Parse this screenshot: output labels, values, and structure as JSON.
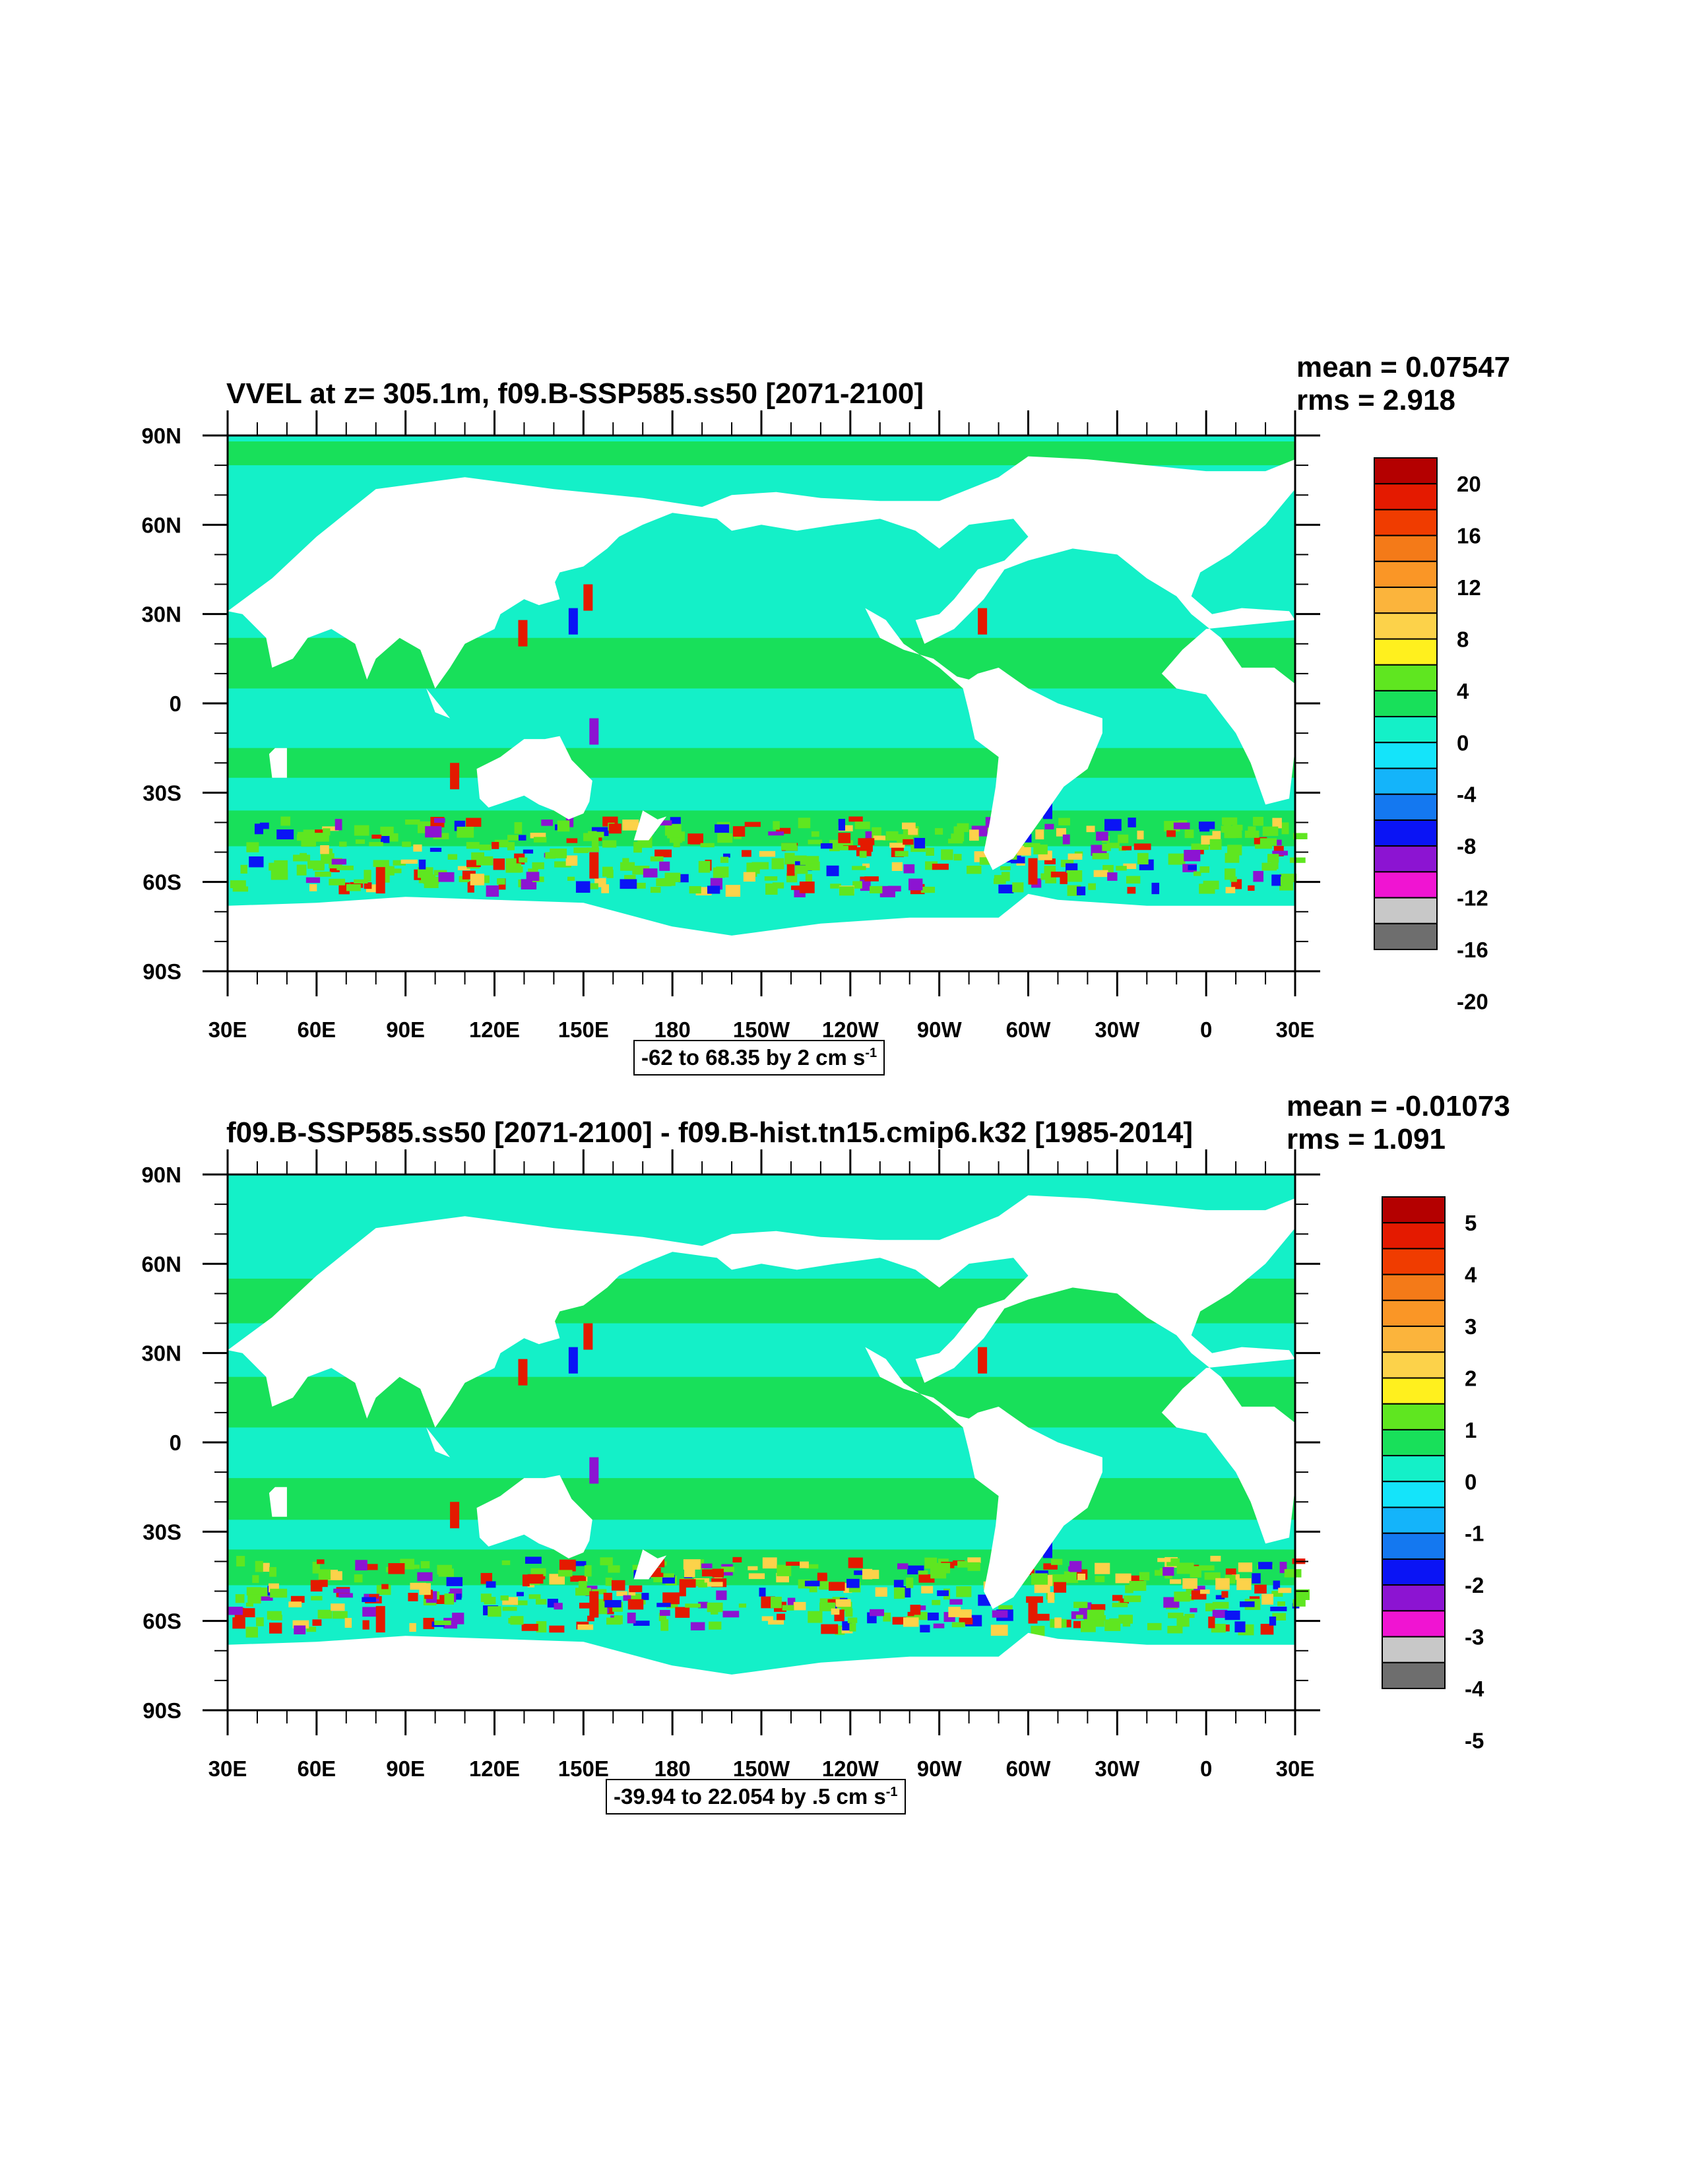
{
  "panels": [
    {
      "title": "VVEL at z= 305.1m, f09.B-SSP585.ss50 [2071-2100]",
      "mean": "mean = 0.07547",
      "rms": "rms = 2.918",
      "range_text": "-62 to 68.35 by 2 cm s",
      "range_sup": "-1",
      "colorbar_labels": [
        "20",
        "16",
        "12",
        "8",
        "4",
        "0",
        "-4",
        "-8",
        "-12",
        "-16",
        "-20"
      ]
    },
    {
      "title": "f09.B-SSP585.ss50 [2071-2100] - f09.B-hist.tn15.cmip6.k32 [1985-2014]",
      "mean": "mean = -0.01073",
      "rms": "rms = 1.091",
      "range_text": "-39.94 to 22.054 by .5 cm s",
      "range_sup": "-1",
      "colorbar_labels": [
        "5",
        "4",
        "3",
        "2",
        "1",
        "0",
        "-1",
        "-2",
        "-3",
        "-4",
        "-5"
      ]
    }
  ],
  "chart_data": [
    {
      "type": "heatmap",
      "title": "VVEL at z= 305.1m, f09.B-SSP585.ss50 [2071-2100]",
      "xlabels": [
        "30E",
        "60E",
        "90E",
        "120E",
        "150E",
        "180",
        "150W",
        "120W",
        "90W",
        "60W",
        "30W",
        "0",
        "30E"
      ],
      "ylabels": [
        "90N",
        "60N",
        "30N",
        "0",
        "30S",
        "60S",
        "90S"
      ],
      "colorbar_levels": [
        20,
        18,
        16,
        14,
        12,
        10,
        8,
        6,
        4,
        2,
        0,
        -2,
        -4,
        -6,
        -8,
        -10,
        -12,
        -14,
        -16,
        -18,
        -20
      ],
      "colors": [
        "#b40000",
        "#e41a00",
        "#f03c00",
        "#f47a18",
        "#fa9626",
        "#fbb43c",
        "#fcd24a",
        "#fff01e",
        "#5fe620",
        "#18e05a",
        "#14f0c8",
        "#14e4fa",
        "#14b4fa",
        "#1478f0",
        "#0a14f5",
        "#8c14d2",
        "#f014d2",
        "#c8c8c8",
        "#6e6e6e"
      ],
      "mean": 0.07547,
      "rms": 2.918,
      "data_min": -62,
      "data_max": 68.35,
      "contour_interval": 2,
      "units": "cm s-1"
    },
    {
      "type": "heatmap",
      "title": "f09.B-SSP585.ss50 [2071-2100] - f09.B-hist.tn15.cmip6.k32 [1985-2014]",
      "xlabels": [
        "30E",
        "60E",
        "90E",
        "120E",
        "150E",
        "180",
        "150W",
        "120W",
        "90W",
        "60W",
        "30W",
        "0",
        "30E"
      ],
      "ylabels": [
        "90N",
        "60N",
        "30N",
        "0",
        "30S",
        "60S",
        "90S"
      ],
      "colorbar_levels": [
        5,
        4.5,
        4,
        3.5,
        3,
        2.5,
        2,
        1.5,
        1,
        0.5,
        0,
        -0.5,
        -1,
        -1.5,
        -2,
        -2.5,
        -3,
        -3.5,
        -4,
        -4.5,
        -5
      ],
      "colors": [
        "#b40000",
        "#e41a00",
        "#f03c00",
        "#f47a18",
        "#fa9626",
        "#fbb43c",
        "#fcd24a",
        "#fff01e",
        "#5fe620",
        "#18e05a",
        "#14f0c8",
        "#14e4fa",
        "#14b4fa",
        "#1478f0",
        "#0a14f5",
        "#8c14d2",
        "#f014d2",
        "#c8c8c8",
        "#6e6e6e"
      ],
      "mean": -0.01073,
      "rms": 1.091,
      "data_min": -39.94,
      "data_max": 22.054,
      "contour_interval": 0.5,
      "units": "cm s-1"
    }
  ]
}
